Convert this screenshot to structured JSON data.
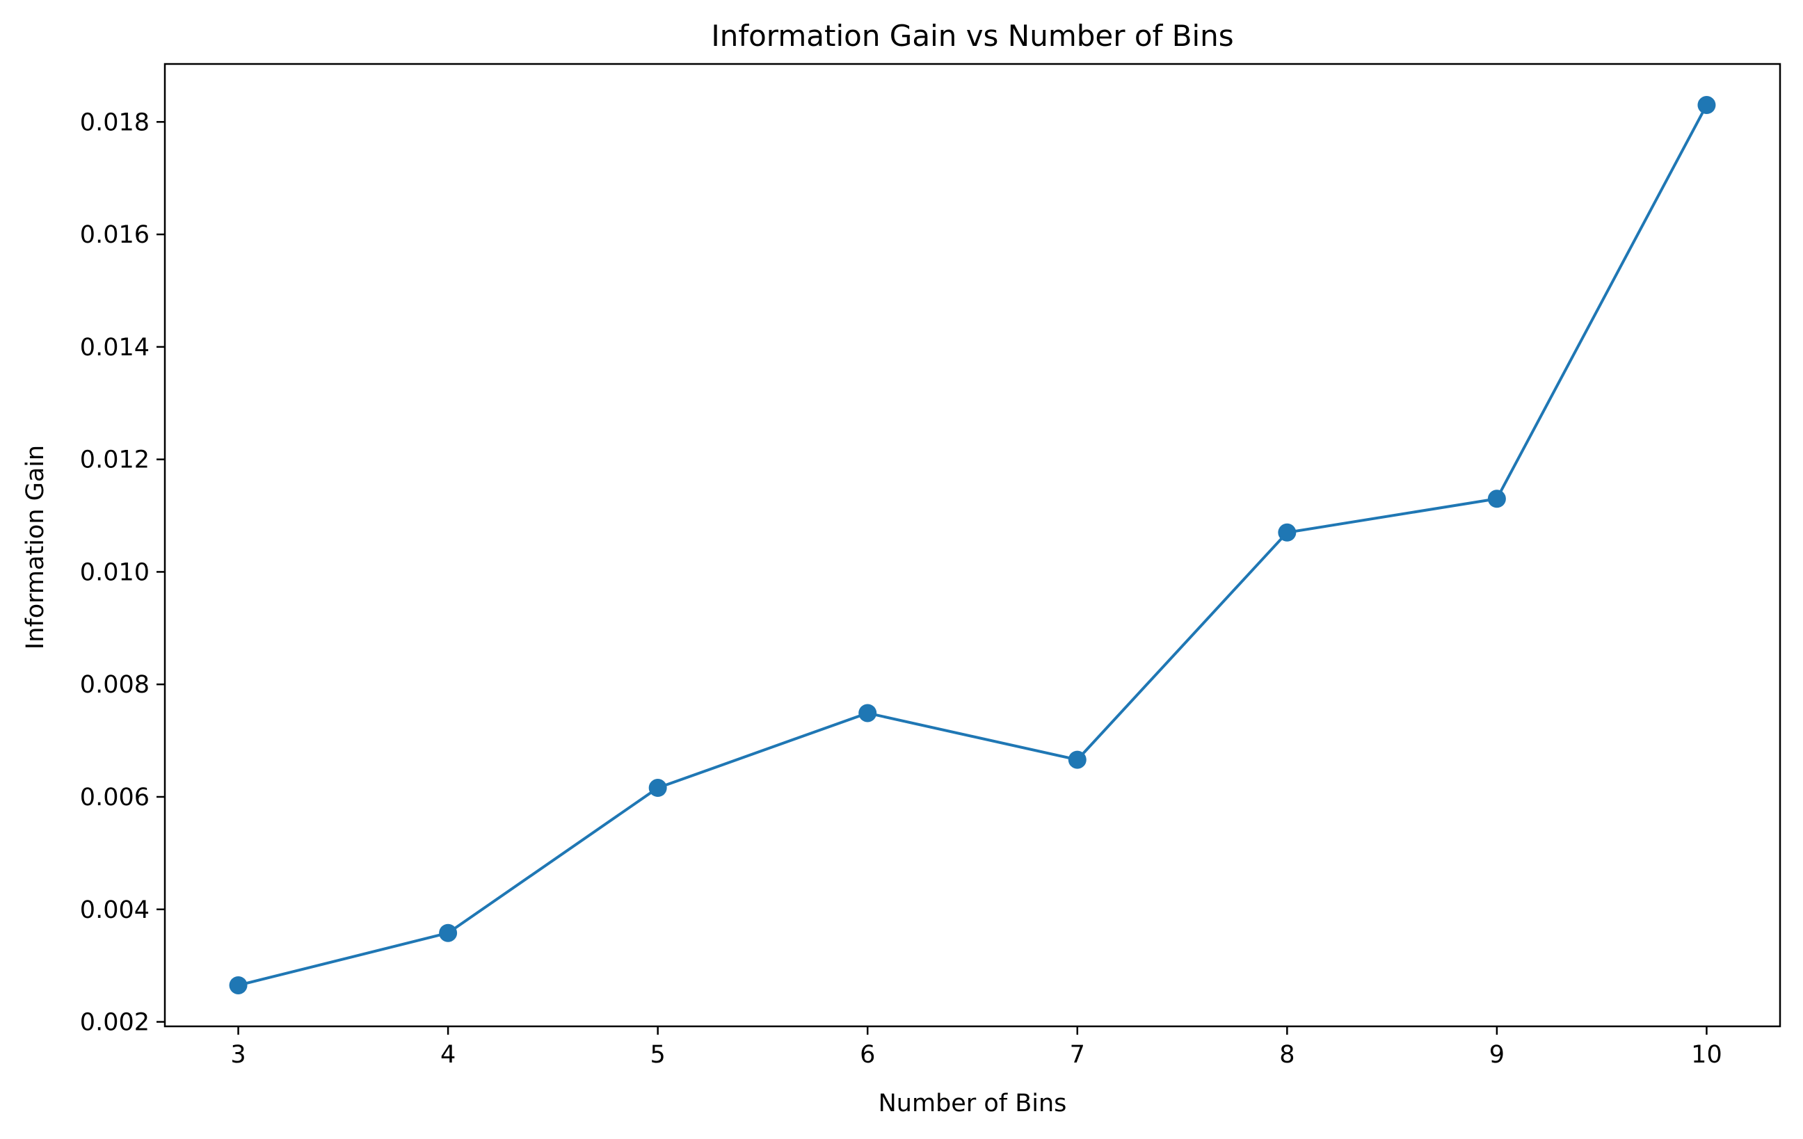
{
  "chart_data": {
    "type": "line",
    "title": "Information Gain vs Number of Bins",
    "xlabel": "Number of Bins",
    "ylabel": "Information Gain",
    "x": [
      3,
      4,
      5,
      6,
      7,
      8,
      9,
      10
    ],
    "series": [
      {
        "values": [
          0.00265,
          0.00358,
          0.00616,
          0.00749,
          0.00666,
          0.0107,
          0.0113,
          0.0183
        ],
        "color": "#1f77b4",
        "marker": "circle"
      }
    ],
    "xlim": [
      2.65,
      10.35
    ],
    "ylim": [
      0.00192,
      0.01903
    ],
    "xticks": [
      3,
      4,
      5,
      6,
      7,
      8,
      9,
      10
    ],
    "xtick_labels": [
      "3",
      "4",
      "5",
      "6",
      "7",
      "8",
      "9",
      "10"
    ],
    "yticks": [
      0.002,
      0.004,
      0.006,
      0.008,
      0.01,
      0.012,
      0.014,
      0.016,
      0.018
    ],
    "ytick_labels": [
      "0.002",
      "0.004",
      "0.006",
      "0.008",
      "0.010",
      "0.012",
      "0.014",
      "0.016",
      "0.018"
    ],
    "grid": false,
    "legend": "none"
  }
}
